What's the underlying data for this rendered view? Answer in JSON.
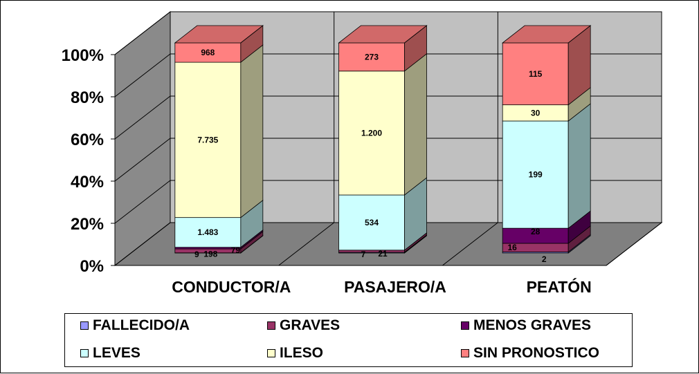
{
  "chart_data": {
    "type": "bar",
    "stacked": "percent",
    "three_d": true,
    "categories": [
      "CONDUCTOR/A",
      "PASAJERO/A",
      "PEATÓN"
    ],
    "y_ticks": [
      "0%",
      "20%",
      "40%",
      "60%",
      "80%",
      "100%"
    ],
    "ylim": [
      0,
      100
    ],
    "grid": true,
    "legend_position": "bottom",
    "series": [
      {
        "name": "FALLECIDO/A",
        "color": "#9999FF",
        "values": [
          9,
          7,
          2
        ],
        "labels": [
          "9",
          "7",
          "2"
        ]
      },
      {
        "name": "GRAVES",
        "color": "#993366",
        "values": [
          198,
          21,
          16
        ],
        "labels": [
          "198",
          "21",
          "16"
        ]
      },
      {
        "name": "MENOS GRAVES",
        "color": "#660066",
        "values": [
          79,
          0,
          28
        ],
        "labels": [
          "79",
          "",
          "28"
        ]
      },
      {
        "name": "LEVES",
        "color": "#CCFFFF",
        "values": [
          1483,
          534,
          199
        ],
        "labels": [
          "1.483",
          "534",
          "199"
        ]
      },
      {
        "name": "ILESO",
        "color": "#FFFFCC",
        "values": [
          7735,
          1200,
          30
        ],
        "labels": [
          "7.735",
          "1.200",
          "30"
        ]
      },
      {
        "name": "SIN PRONOSTICO",
        "color": "#FF8080",
        "values": [
          968,
          273,
          115
        ],
        "labels": [
          "968",
          "273",
          "115"
        ]
      }
    ]
  }
}
